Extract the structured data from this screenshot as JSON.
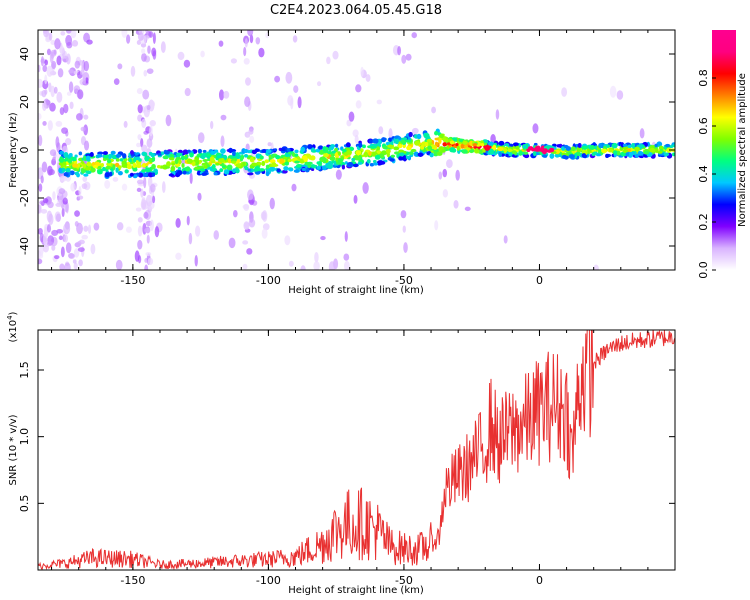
{
  "title": "C2E4.2023.064.05.45.G18",
  "chart_data": [
    {
      "type": "heatmap",
      "xlabel": "Height of straight line (km)",
      "ylabel": "Frequency (Hz)",
      "xlim": [
        -185,
        50
      ],
      "ylim": [
        -50,
        50
      ],
      "x_ticks": [
        -150,
        -100,
        -50,
        0
      ],
      "x_tick_labels": [
        "-150",
        "-100",
        "-50",
        "0"
      ],
      "y_ticks": [
        -40,
        -20,
        0,
        20,
        40
      ],
      "y_tick_labels": [
        "-40",
        "-20",
        "0",
        "20",
        "40"
      ],
      "ridge_center_hz": {
        "x": [
          -185,
          -175,
          -150,
          -120,
          -100,
          -80,
          -60,
          -45,
          -38,
          -30,
          -20,
          -10,
          0,
          10,
          20,
          45
        ],
        "y": [
          -4,
          -6,
          -6,
          -5,
          -5,
          -3,
          -1,
          2,
          3,
          2,
          1,
          0,
          0,
          -1,
          0,
          0
        ]
      },
      "colorbar": {
        "label": "Normalized spectral amplitude",
        "range": [
          0,
          1
        ],
        "ticks": [
          0.0,
          0.2,
          0.4,
          0.6,
          0.8
        ],
        "tick_labels": [
          "0.0",
          "0.2",
          "0.4",
          "0.6",
          "0.8"
        ],
        "colormap": [
          "#ffffff",
          "#d9b3ff",
          "#8000ff",
          "#0000ff",
          "#00c8ff",
          "#00ff80",
          "#80ff00",
          "#ffff00",
          "#ff8000",
          "#ff0000",
          "#ff0080",
          "#ff0090"
        ]
      }
    },
    {
      "type": "line",
      "xlabel": "Height of straight line (km)",
      "ylabel": "SNR (10 * v/v)",
      "y_multiplier_label": "(x10",
      "y_multiplier_exp": "4",
      "xlim": [
        -185,
        50
      ],
      "ylim": [
        0,
        18000
      ],
      "x_ticks": [
        -150,
        -100,
        -50,
        0
      ],
      "x_tick_labels": [
        "-150",
        "-100",
        "-50",
        "0"
      ],
      "y_ticks": [
        5000,
        10000,
        15000
      ],
      "y_tick_labels": [
        "0.5",
        "1.0",
        "1.5"
      ],
      "line_color": "#e83030",
      "series": [
        {
          "x": [
            -185,
            -175,
            -165,
            -150,
            -140,
            -125,
            -110,
            -100,
            -90,
            -80,
            -75,
            -70,
            -65,
            -60,
            -55,
            -50,
            -45,
            -40,
            -37,
            -35,
            -30,
            -25,
            -20,
            -18,
            -15,
            -10,
            -5,
            0,
            5,
            10,
            12,
            15,
            20,
            25,
            30,
            40,
            50
          ],
          "y": [
            300,
            500,
            900,
            800,
            400,
            500,
            700,
            800,
            1000,
            2000,
            3000,
            3500,
            3500,
            3000,
            1800,
            1600,
            1500,
            2000,
            2500,
            6000,
            7000,
            8000,
            9500,
            11000,
            9500,
            10500,
            11000,
            12000,
            12500,
            12000,
            8500,
            14500,
            15500,
            16500,
            17000,
            17300,
            17500
          ]
        }
      ]
    }
  ]
}
